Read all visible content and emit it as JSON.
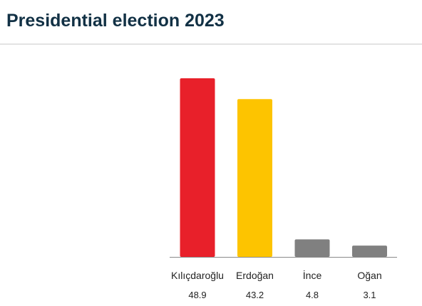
{
  "header": {
    "title": "Presidential election 2023"
  },
  "chart_data": {
    "type": "bar",
    "title": "Presidential election 2023",
    "categories": [
      "Kılıçdaroğlu",
      "Erdoğan",
      "İnce",
      "Oğan"
    ],
    "values": [
      48.9,
      43.2,
      4.8,
      3.1
    ],
    "value_labels": [
      "48.9",
      "43.2",
      "4.8",
      "3.1"
    ],
    "colors": [
      "#e8202a",
      "#fdc400",
      "#808080",
      "#808080"
    ],
    "xlabel": "",
    "ylabel": "",
    "ylim": [
      0,
      50
    ],
    "grid": false,
    "legend": "none"
  }
}
